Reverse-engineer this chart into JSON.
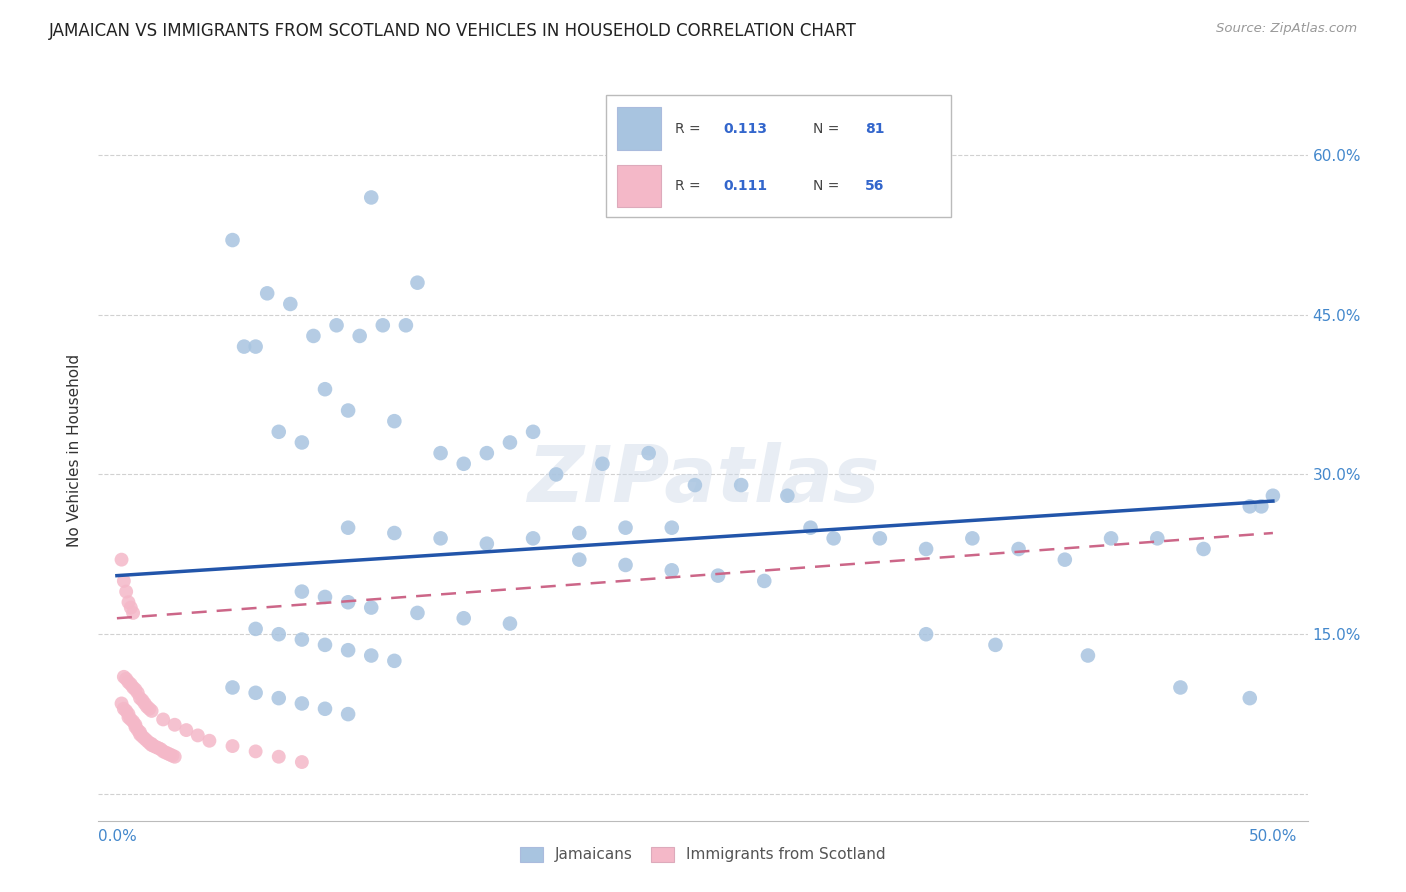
{
  "title": "JAMAICAN VS IMMIGRANTS FROM SCOTLAND NO VEHICLES IN HOUSEHOLD CORRELATION CHART",
  "source": "Source: ZipAtlas.com",
  "ylabel": "No Vehicles in Household",
  "xlim": [
    -0.008,
    0.515
  ],
  "ylim": [
    -0.025,
    0.67
  ],
  "xticks": [
    0.0,
    0.1,
    0.2,
    0.3,
    0.4,
    0.5
  ],
  "xticklabels": [
    "0.0%",
    "",
    "",
    "",
    "",
    "50.0%"
  ],
  "yticks": [
    0.0,
    0.15,
    0.3,
    0.45,
    0.6
  ],
  "yticklabels_right": [
    "",
    "15.0%",
    "30.0%",
    "45.0%",
    "60.0%"
  ],
  "grid_color": "#cccccc",
  "background_color": "#ffffff",
  "jamaicans_color": "#a8c4e0",
  "scotland_color": "#f4b8c8",
  "line_blue": "#2255aa",
  "line_pink": "#cc6688",
  "watermark": "ZIPatlas",
  "jamaicans_x": [
    0.05,
    0.11,
    0.13,
    0.115,
    0.125,
    0.105,
    0.095,
    0.085,
    0.075,
    0.065,
    0.09,
    0.1,
    0.12,
    0.14,
    0.16,
    0.18,
    0.07,
    0.08,
    0.06,
    0.055,
    0.15,
    0.17,
    0.19,
    0.21,
    0.23,
    0.25,
    0.27,
    0.29,
    0.31,
    0.33,
    0.35,
    0.37,
    0.39,
    0.41,
    0.43,
    0.45,
    0.47,
    0.49,
    0.1,
    0.12,
    0.14,
    0.16,
    0.18,
    0.2,
    0.22,
    0.24,
    0.08,
    0.09,
    0.1,
    0.11,
    0.13,
    0.15,
    0.17,
    0.06,
    0.07,
    0.08,
    0.09,
    0.1,
    0.11,
    0.12,
    0.05,
    0.06,
    0.07,
    0.08,
    0.09,
    0.1,
    0.2,
    0.22,
    0.24,
    0.26,
    0.28,
    0.3,
    0.35,
    0.38,
    0.42,
    0.46,
    0.49,
    0.5,
    0.495
  ],
  "jamaicans_y": [
    0.52,
    0.56,
    0.48,
    0.44,
    0.44,
    0.43,
    0.44,
    0.43,
    0.46,
    0.47,
    0.38,
    0.36,
    0.35,
    0.32,
    0.32,
    0.34,
    0.34,
    0.33,
    0.42,
    0.42,
    0.31,
    0.33,
    0.3,
    0.31,
    0.32,
    0.29,
    0.29,
    0.28,
    0.24,
    0.24,
    0.23,
    0.24,
    0.23,
    0.22,
    0.24,
    0.24,
    0.23,
    0.27,
    0.25,
    0.245,
    0.24,
    0.235,
    0.24,
    0.245,
    0.25,
    0.25,
    0.19,
    0.185,
    0.18,
    0.175,
    0.17,
    0.165,
    0.16,
    0.155,
    0.15,
    0.145,
    0.14,
    0.135,
    0.13,
    0.125,
    0.1,
    0.095,
    0.09,
    0.085,
    0.08,
    0.075,
    0.22,
    0.215,
    0.21,
    0.205,
    0.2,
    0.25,
    0.15,
    0.14,
    0.13,
    0.1,
    0.09,
    0.28,
    0.27
  ],
  "scotland_x": [
    0.002,
    0.003,
    0.004,
    0.005,
    0.005,
    0.006,
    0.007,
    0.008,
    0.008,
    0.009,
    0.01,
    0.01,
    0.011,
    0.012,
    0.013,
    0.014,
    0.015,
    0.015,
    0.016,
    0.017,
    0.018,
    0.019,
    0.02,
    0.021,
    0.022,
    0.023,
    0.024,
    0.025,
    0.003,
    0.004,
    0.005,
    0.006,
    0.007,
    0.008,
    0.009,
    0.01,
    0.011,
    0.012,
    0.013,
    0.014,
    0.015,
    0.02,
    0.025,
    0.03,
    0.035,
    0.04,
    0.05,
    0.06,
    0.07,
    0.08,
    0.002,
    0.003,
    0.004,
    0.005,
    0.006,
    0.007
  ],
  "scotland_y": [
    0.085,
    0.08,
    0.078,
    0.075,
    0.072,
    0.07,
    0.068,
    0.065,
    0.063,
    0.06,
    0.058,
    0.056,
    0.054,
    0.052,
    0.05,
    0.048,
    0.047,
    0.046,
    0.045,
    0.044,
    0.043,
    0.042,
    0.04,
    0.039,
    0.038,
    0.037,
    0.036,
    0.035,
    0.11,
    0.108,
    0.105,
    0.103,
    0.1,
    0.098,
    0.095,
    0.09,
    0.088,
    0.085,
    0.082,
    0.08,
    0.078,
    0.07,
    0.065,
    0.06,
    0.055,
    0.05,
    0.045,
    0.04,
    0.035,
    0.03,
    0.22,
    0.2,
    0.19,
    0.18,
    0.175,
    0.17
  ]
}
